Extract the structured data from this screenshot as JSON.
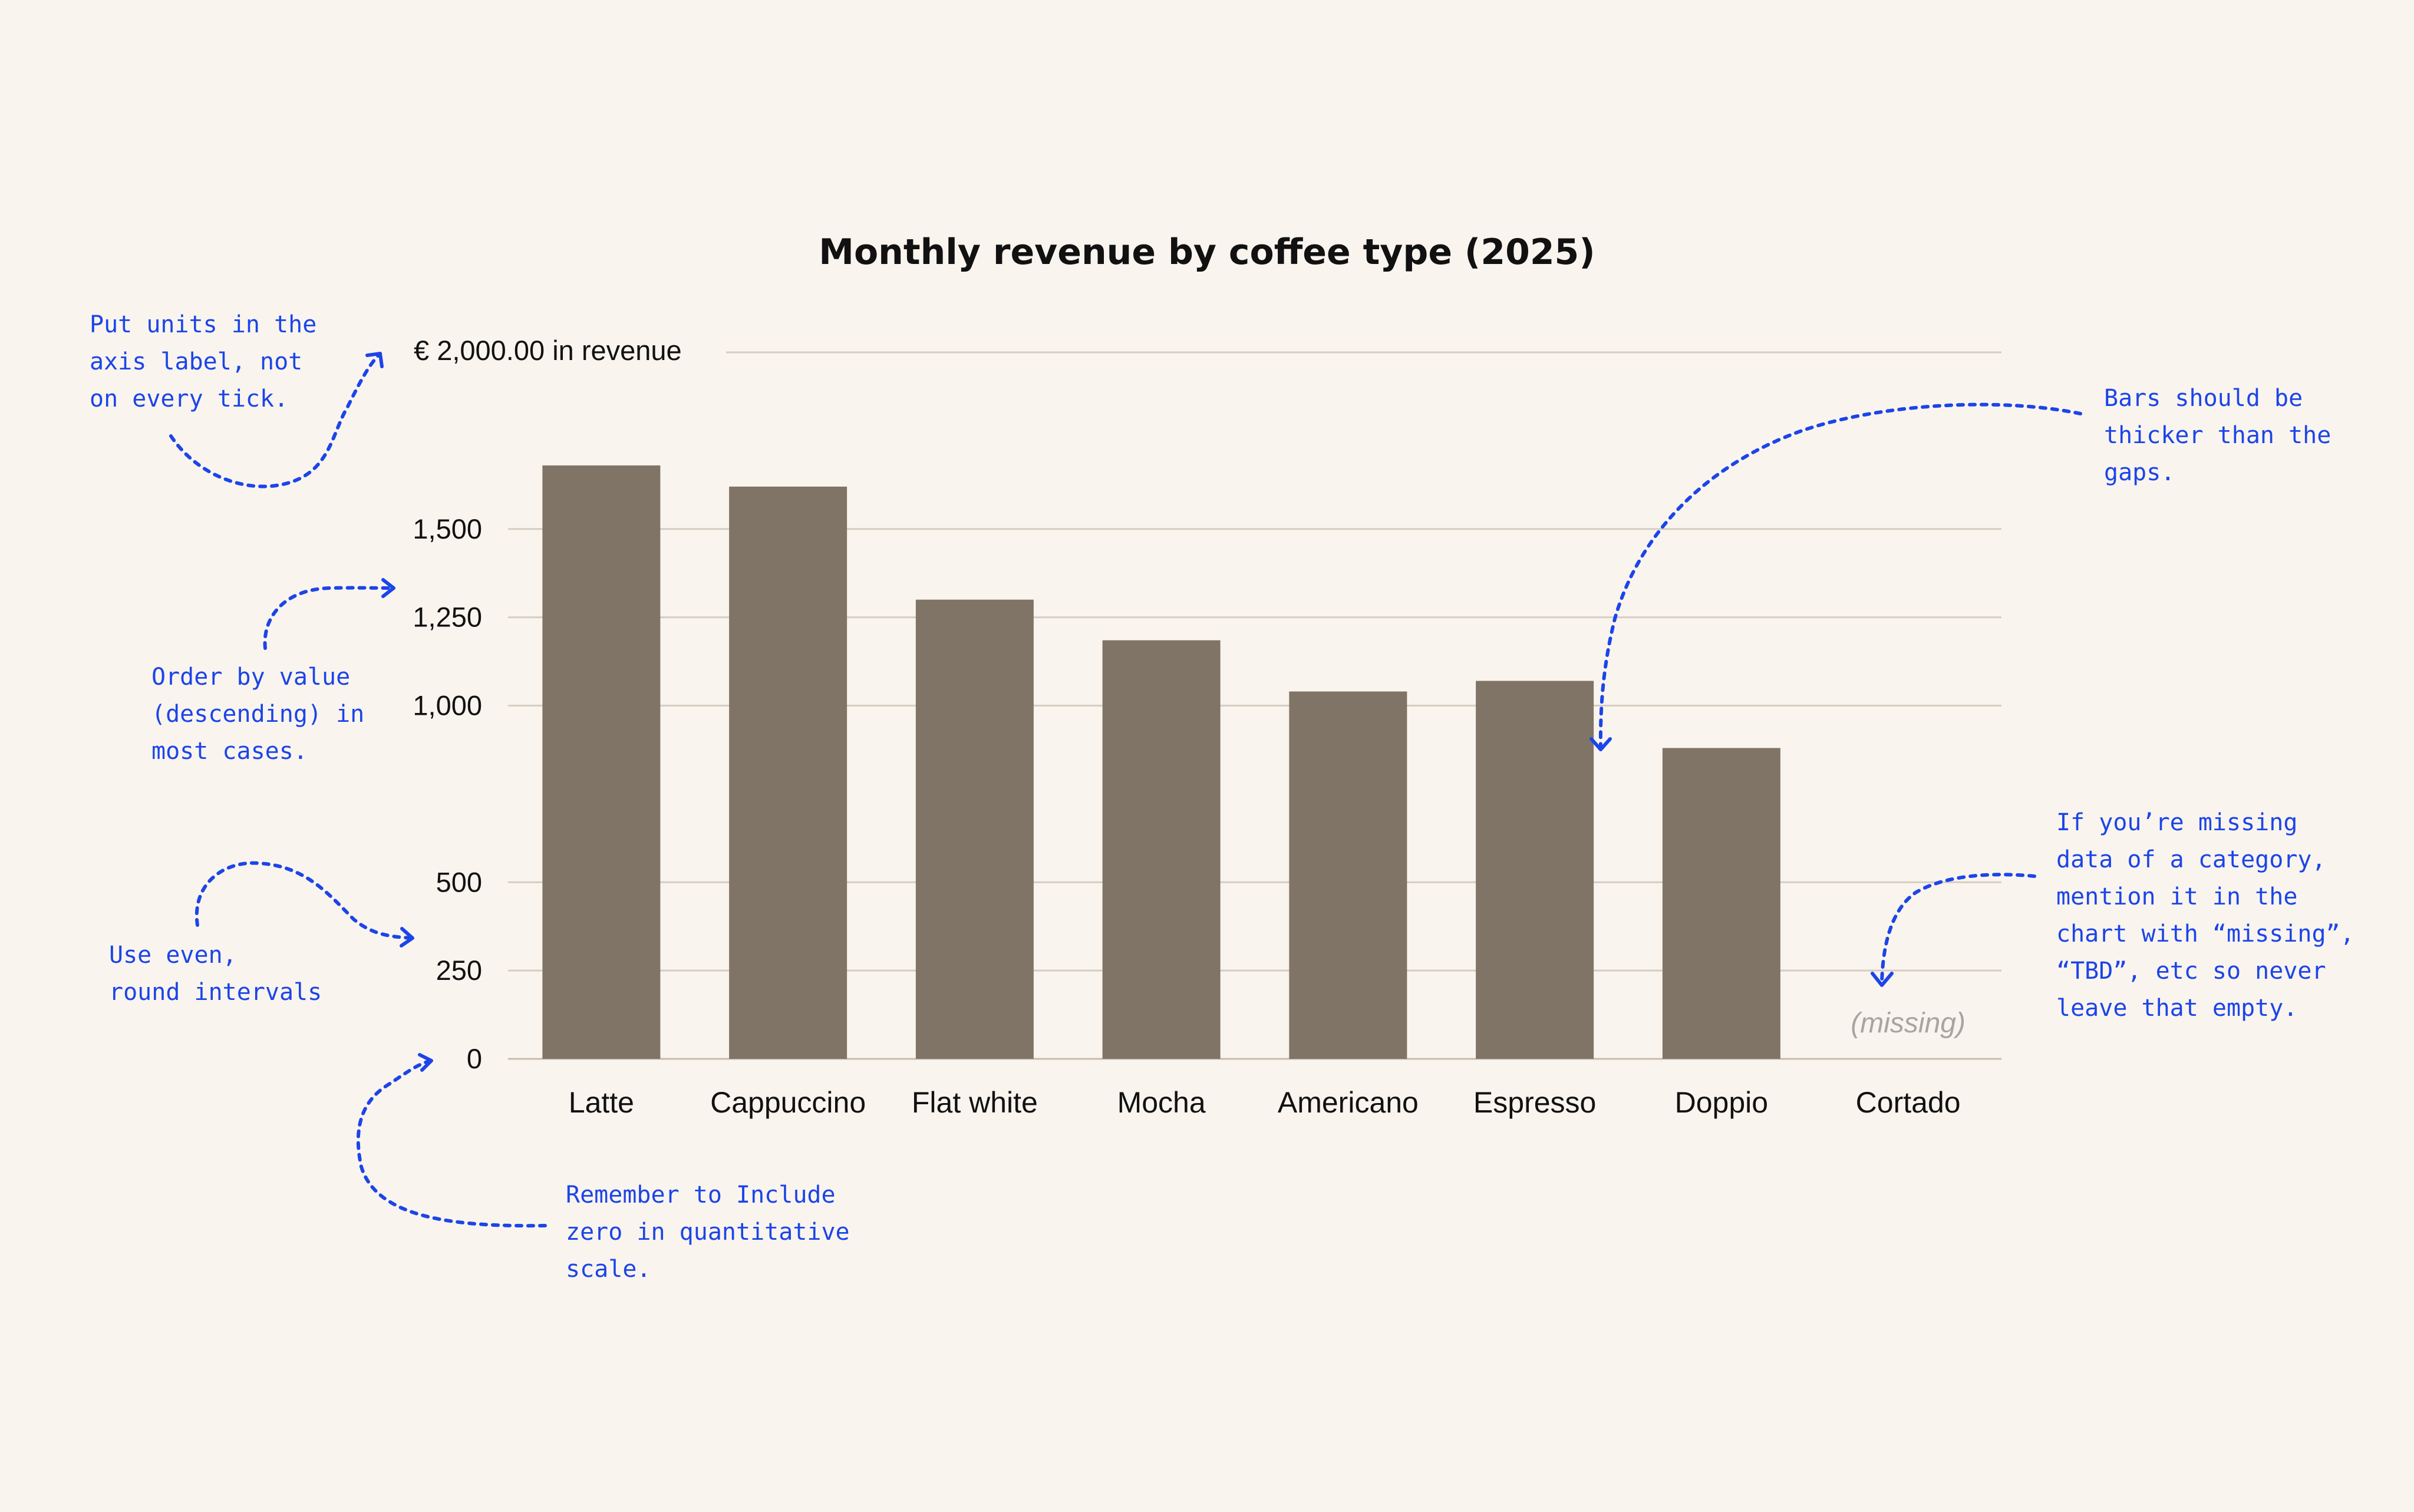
{
  "chart_data": {
    "type": "bar",
    "title": "Monthly revenue by coffee type (2025)",
    "y_axis_top_label": "€ 2,000.00 in revenue",
    "ylim": [
      0,
      2000
    ],
    "y_ticks": [
      {
        "value": 1500,
        "label": "1,500"
      },
      {
        "value": 1250,
        "label": "1,250"
      },
      {
        "value": 1000,
        "label": "1,000"
      },
      {
        "value": 500,
        "label": "500"
      },
      {
        "value": 250,
        "label": "250"
      },
      {
        "value": 0,
        "label": "0"
      }
    ],
    "grid": true,
    "categories": [
      "Latte",
      "Cappuccino",
      "Flat white",
      "Mocha",
      "Americano",
      "Espresso",
      "Doppio",
      "Cortado"
    ],
    "values": [
      1680,
      1620,
      1300,
      1185,
      1040,
      1070,
      880,
      null
    ],
    "missing_label": "(missing)",
    "colors": {
      "bar": "#7f7465",
      "grid": "#d6cdc2",
      "annotation": "#1b45e8",
      "missing_text": "#a8a4a0",
      "background": "#faf4ee"
    }
  },
  "annotations": [
    {
      "id": "units",
      "lines": [
        "Put units in the",
        "axis label, not",
        "on every tick."
      ]
    },
    {
      "id": "order",
      "lines": [
        "Order by value",
        "(descending) in",
        "most cases."
      ]
    },
    {
      "id": "intervals",
      "lines": [
        "Use even,",
        "round intervals"
      ]
    },
    {
      "id": "zero",
      "lines": [
        "Remember to Include",
        "zero in quantitative",
        "scale."
      ]
    },
    {
      "id": "thickness",
      "lines": [
        "Bars should be",
        "thicker than the",
        "gaps."
      ]
    },
    {
      "id": "missing",
      "lines": [
        "If you’re missing",
        "data of a category,",
        "mention it in the",
        "chart with “missing”,",
        "“TBD”, etc so never",
        "leave that empty."
      ]
    }
  ]
}
